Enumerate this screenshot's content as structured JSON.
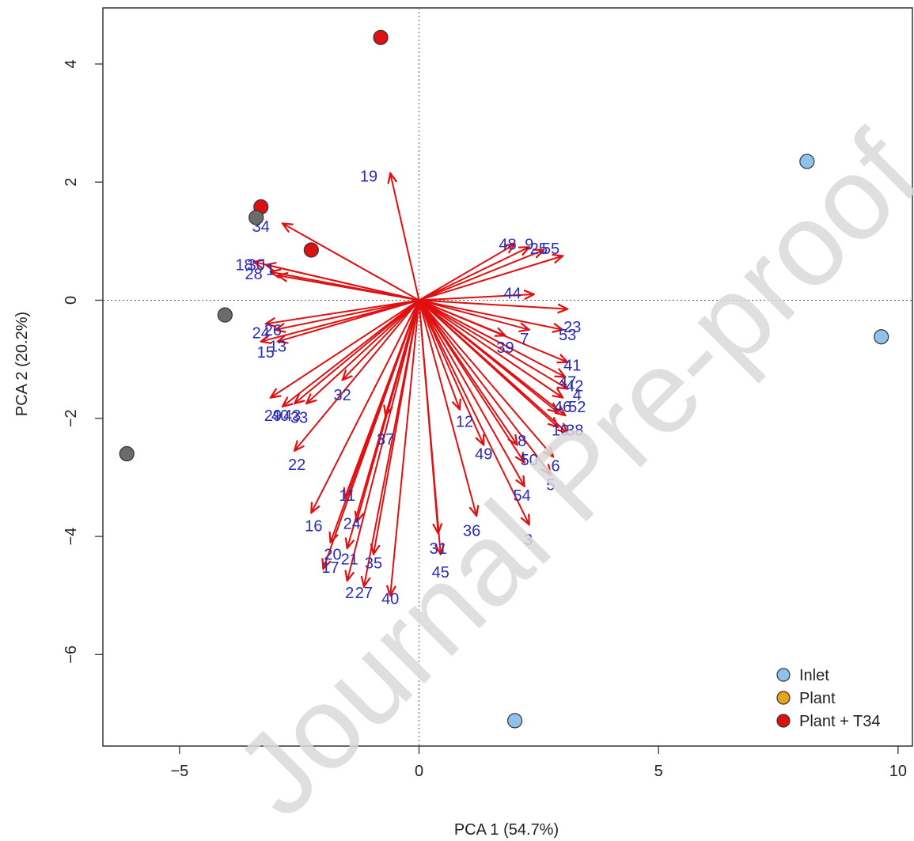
{
  "watermark": "Journal Pre-proof",
  "colors": {
    "arrow": "#e01010",
    "loading_label": "#2a2ab8",
    "inlet": "#8ec2ea",
    "plant": "#e8a418",
    "plant_t34": "#dd1111",
    "grey_point": "#6b6b6b",
    "watermark": "#d9d9d9"
  },
  "chart_data": {
    "type": "scatter",
    "subtype": "biplot",
    "xlabel": "PCA 1 (54.7%)",
    "ylabel": "PCA 2 (20.2%)",
    "xlim": [
      -6.6,
      10.3
    ],
    "ylim": [
      -7.55,
      4.95
    ],
    "xticks": [
      -5,
      0,
      5,
      10
    ],
    "xtick_labels": [
      "−5",
      "0",
      "5",
      "10"
    ],
    "yticks": [
      -6,
      -4,
      -2,
      0,
      2,
      4
    ],
    "ytick_labels": [
      "−6",
      "−4",
      "−2",
      "0",
      "2",
      "4"
    ],
    "reference_lines": {
      "x": 0,
      "y": 0,
      "style": "dotted"
    },
    "legend": {
      "position": "bottom-right",
      "entries": [
        {
          "label": "Inlet",
          "color": "#8ec2ea"
        },
        {
          "label": "Plant",
          "color": "#e8a418"
        },
        {
          "label": "Plant + T34",
          "color": "#dd1111"
        }
      ]
    },
    "points": [
      {
        "group": "Plant + T34",
        "x": -0.8,
        "y": 4.45
      },
      {
        "group": "Plant + T34",
        "x": -3.3,
        "y": 1.58
      },
      {
        "group": "Plant + T34",
        "x": -2.25,
        "y": 0.85
      },
      {
        "group": "Plant",
        "x": -3.4,
        "y": 1.4,
        "color": "#6b6b6b"
      },
      {
        "group": "Plant",
        "x": -4.05,
        "y": -0.25,
        "color": "#6b6b6b"
      },
      {
        "group": "Plant",
        "x": -6.1,
        "y": -2.6,
        "color": "#6b6b6b"
      },
      {
        "group": "Inlet",
        "x": 8.1,
        "y": 2.35
      },
      {
        "group": "Inlet",
        "x": 9.65,
        "y": -0.62
      },
      {
        "group": "Inlet",
        "x": 2.0,
        "y": -7.12
      }
    ],
    "loadings": [
      {
        "label": "19",
        "x": -0.6,
        "y": 2.15,
        "lx": -1.05,
        "ly": 2.1
      },
      {
        "label": "34",
        "x": -2.85,
        "y": 1.3,
        "lx": -3.3,
        "ly": 1.25
      },
      {
        "label": "18",
        "x": -3.45,
        "y": 0.65,
        "lx": -3.65,
        "ly": 0.6
      },
      {
        "label": "30",
        "x": -3.2,
        "y": 0.6,
        "lx": -3.4,
        "ly": 0.6
      },
      {
        "label": "28",
        "x": -3.1,
        "y": 0.48,
        "lx": -3.45,
        "ly": 0.45
      },
      {
        "label": "1",
        "x": -2.95,
        "y": 0.42,
        "lx": -3.1,
        "ly": 0.52
      },
      {
        "label": "48",
        "x": 2.0,
        "y": 0.95,
        "lx": 1.85,
        "ly": 0.95
      },
      {
        "label": "9",
        "x": 2.3,
        "y": 0.9,
        "lx": 2.3,
        "ly": 0.95
      },
      {
        "label": "25",
        "x": 2.6,
        "y": 0.85,
        "lx": 2.5,
        "ly": 0.88
      },
      {
        "label": "55",
        "x": 3.0,
        "y": 0.75,
        "lx": 2.75,
        "ly": 0.88
      },
      {
        "label": "44",
        "x": 2.4,
        "y": 0.1,
        "lx": 1.95,
        "ly": 0.12
      },
      {
        "label": "23",
        "x": 3.1,
        "y": -0.15,
        "lx": 3.2,
        "ly": -0.45
      },
      {
        "label": "53",
        "x": 3.0,
        "y": -0.5,
        "lx": 3.1,
        "ly": -0.58
      },
      {
        "label": "7",
        "x": 2.3,
        "y": -0.5,
        "lx": 2.2,
        "ly": -0.65
      },
      {
        "label": "39",
        "x": 1.8,
        "y": -0.6,
        "lx": 1.8,
        "ly": -0.8
      },
      {
        "label": "24",
        "x": -3.2,
        "y": -0.4,
        "lx": -3.3,
        "ly": -0.55
      },
      {
        "label": "26",
        "x": -3.0,
        "y": -0.5,
        "lx": -3.05,
        "ly": -0.5
      },
      {
        "label": "15",
        "x": -3.3,
        "y": -0.7,
        "lx": -3.2,
        "ly": -0.88
      },
      {
        "label": "13",
        "x": -2.95,
        "y": -0.7,
        "lx": -2.95,
        "ly": -0.78
      },
      {
        "label": "41",
        "x": 3.1,
        "y": -1.05,
        "lx": 3.2,
        "ly": -1.1
      },
      {
        "label": "47",
        "x": 3.05,
        "y": -1.3,
        "lx": 3.1,
        "ly": -1.38
      },
      {
        "label": "42",
        "x": 3.1,
        "y": -1.5,
        "lx": 3.25,
        "ly": -1.45
      },
      {
        "label": "4",
        "x": 3.0,
        "y": -1.65,
        "lx": 3.3,
        "ly": -1.6
      },
      {
        "label": "46",
        "x": 2.9,
        "y": -1.9,
        "lx": 3.0,
        "ly": -1.8
      },
      {
        "label": "52",
        "x": 3.05,
        "y": -1.95,
        "lx": 3.3,
        "ly": -1.8
      },
      {
        "label": "10",
        "x": 2.9,
        "y": -2.15,
        "lx": 2.95,
        "ly": -2.2
      },
      {
        "label": "38",
        "x": 3.1,
        "y": -2.25,
        "lx": 3.25,
        "ly": -2.2
      },
      {
        "label": "32",
        "x": -1.6,
        "y": -1.35,
        "lx": -1.6,
        "ly": -1.6
      },
      {
        "label": "29",
        "x": -3.1,
        "y": -1.65,
        "lx": -3.05,
        "ly": -1.95
      },
      {
        "label": "40",
        "x": -2.85,
        "y": -1.8,
        "lx": -2.9,
        "ly": -1.95
      },
      {
        "label": "43",
        "x": -2.6,
        "y": -1.75,
        "lx": -2.65,
        "ly": -1.95
      },
      {
        "label": "33",
        "x": -2.35,
        "y": -1.75,
        "lx": -2.5,
        "ly": -1.98
      },
      {
        "label": "22",
        "x": -2.6,
        "y": -2.55,
        "lx": -2.55,
        "ly": -2.78
      },
      {
        "label": "37",
        "x": -0.7,
        "y": -1.95,
        "lx": -0.7,
        "ly": -2.35
      },
      {
        "label": "12",
        "x": 0.85,
        "y": -1.85,
        "lx": 0.95,
        "ly": -2.05
      },
      {
        "label": "49",
        "x": 1.35,
        "y": -2.45,
        "lx": 1.35,
        "ly": -2.6
      },
      {
        "label": "8",
        "x": 2.05,
        "y": -2.45,
        "lx": 2.15,
        "ly": -2.38
      },
      {
        "label": "50",
        "x": 2.2,
        "y": -2.75,
        "lx": 2.3,
        "ly": -2.7
      },
      {
        "label": "6",
        "x": 2.8,
        "y": -2.65,
        "lx": 2.85,
        "ly": -2.8
      },
      {
        "label": "5",
        "x": 2.75,
        "y": -2.95,
        "lx": 2.75,
        "ly": -3.12
      },
      {
        "label": "54",
        "x": 2.2,
        "y": -3.15,
        "lx": 2.15,
        "ly": -3.3
      },
      {
        "label": "11",
        "x": -1.55,
        "y": -3.35,
        "lx": -1.5,
        "ly": -3.3
      },
      {
        "label": "16",
        "x": -2.25,
        "y": -3.6,
        "lx": -2.2,
        "ly": -3.82
      },
      {
        "label": "24",
        "x": -1.3,
        "y": -3.75,
        "lx": -1.4,
        "ly": -3.78
      },
      {
        "label": "36",
        "x": 1.2,
        "y": -3.65,
        "lx": 1.1,
        "ly": -3.9
      },
      {
        "label": "3",
        "x": 2.3,
        "y": -3.8,
        "lx": 2.28,
        "ly": -4.05
      },
      {
        "label": "31",
        "x": 0.4,
        "y": -3.95,
        "lx": 0.4,
        "ly": -4.2
      },
      {
        "label": "20",
        "x": -1.85,
        "y": -4.1,
        "lx": -1.8,
        "ly": -4.3
      },
      {
        "label": "21",
        "x": -1.5,
        "y": -4.2,
        "lx": -1.45,
        "ly": -4.38
      },
      {
        "label": "35",
        "x": -0.95,
        "y": -4.3,
        "lx": -0.95,
        "ly": -4.45
      },
      {
        "label": "17",
        "x": -2.0,
        "y": -4.55,
        "lx": -1.85,
        "ly": -4.52
      },
      {
        "label": "45",
        "x": 0.45,
        "y": -4.3,
        "lx": 0.45,
        "ly": -4.6
      },
      {
        "label": "2",
        "x": -1.5,
        "y": -4.75,
        "lx": -1.45,
        "ly": -4.95
      },
      {
        "label": "27",
        "x": -1.15,
        "y": -4.85,
        "lx": -1.15,
        "ly": -4.95
      },
      {
        "label": "40",
        "x": -0.6,
        "y": -5.0,
        "lx": -0.6,
        "ly": -5.05
      }
    ]
  }
}
